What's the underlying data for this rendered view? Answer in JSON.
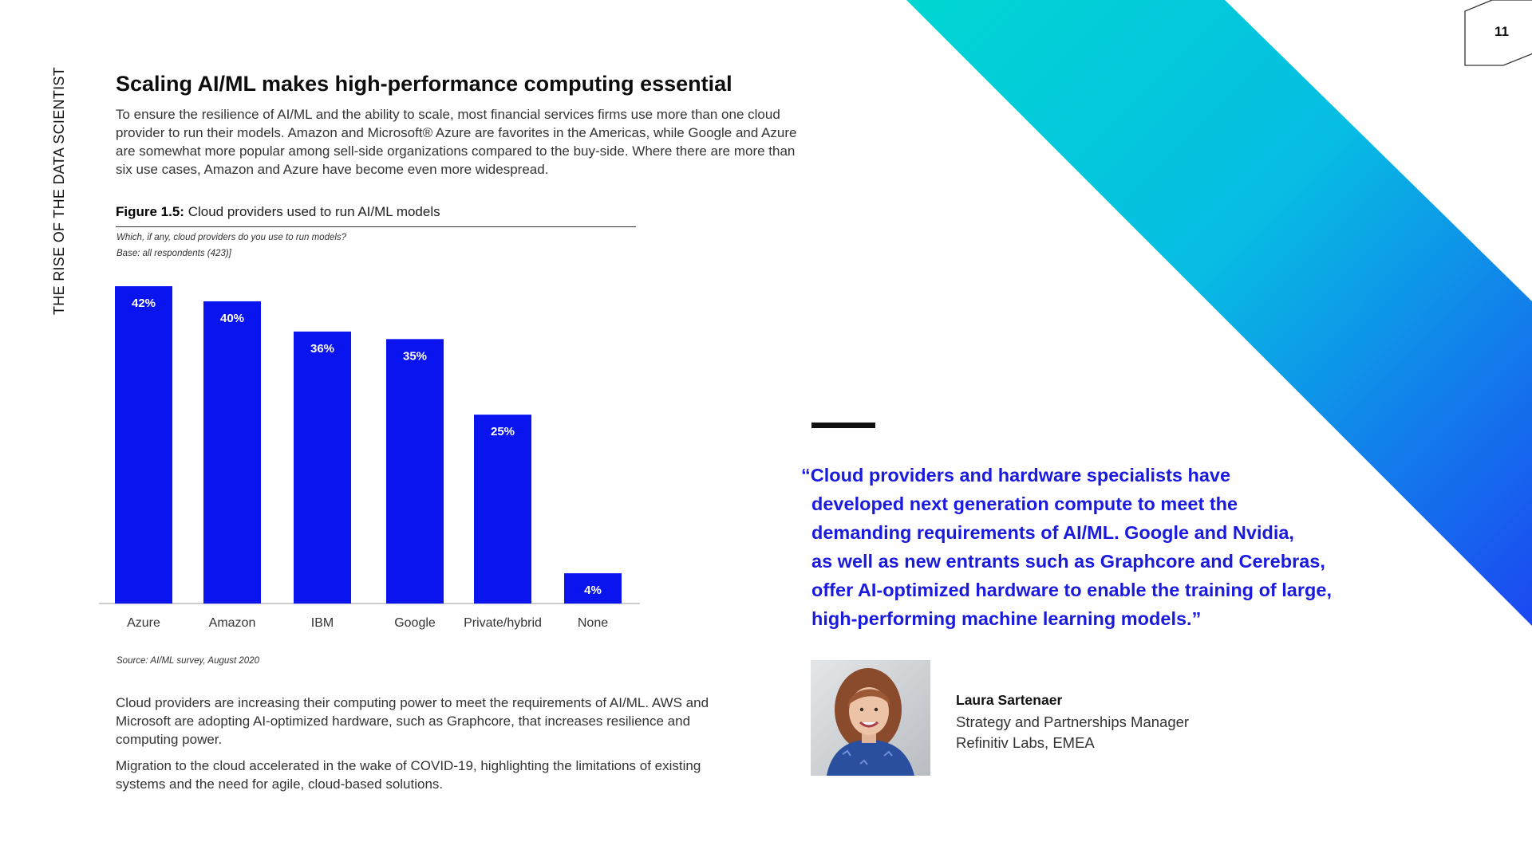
{
  "page_number": "11",
  "side_title": "THE RISE OF THE DATA SCIENTIST",
  "headline": "Scaling AI/ML makes high-performance computing essential",
  "intro": "To ensure the resilience of AI/ML and the ability to scale, most financial services firms use more than one cloud provider to run their models. Amazon and Microsoft® Azure are favorites in the Americas, while Google and Azure are somewhat more popular among sell-side organizations compared to the buy-side. Where there are more than six use cases, Amazon and Azure have become even more widespread.",
  "figure": {
    "label": "Figure 1.5:",
    "title": "Cloud providers used to run AI/ML models",
    "question": "Which, if any, cloud providers do you use to run models?",
    "base": "Base: all respondents (423)]",
    "source": "Source: AI/ML survey, August 2020"
  },
  "chart_data": {
    "type": "bar",
    "categories": [
      "Azure",
      "Amazon",
      "IBM",
      "Google",
      "Private/hybrid",
      "None"
    ],
    "values": [
      42,
      40,
      36,
      35,
      25,
      4
    ],
    "value_labels": [
      "42%",
      "40%",
      "36%",
      "35%",
      "25%",
      "4%"
    ],
    "unit": "%",
    "ylim": [
      0,
      42
    ],
    "grid": false,
    "bar_color": "#0a14ee"
  },
  "body": {
    "paragraph1": "Cloud providers are increasing their computing power to meet the requirements of AI/ML. AWS and Microsoft are adopting AI-optimized hardware, such as Graphcore, that increases resilience and computing power.",
    "paragraph2": "Migration to the cloud accelerated in the wake of COVID-19, highlighting the limitations of existing systems and the need for agile, cloud-based solutions."
  },
  "quote": {
    "lines": [
      "“Cloud providers and hardware specialists have",
      "developed next generation compute to meet the",
      "demanding requirements of AI/ML. Google and Nvidia,",
      "as well as new entrants such as Graphcore and Cerebras,",
      "offer AI-optimized hardware to enable the training of large,",
      "high-performing machine learning models.”"
    ],
    "color": "#1a1adf"
  },
  "person": {
    "name": "Laura Sartenaer",
    "role": "Strategy and Partnerships Manager",
    "org": "Refinitiv Labs, EMEA"
  },
  "colors": {
    "band_start": "#00d2d6",
    "band_end": "#1a55f0",
    "accent": "#0a14ee"
  }
}
